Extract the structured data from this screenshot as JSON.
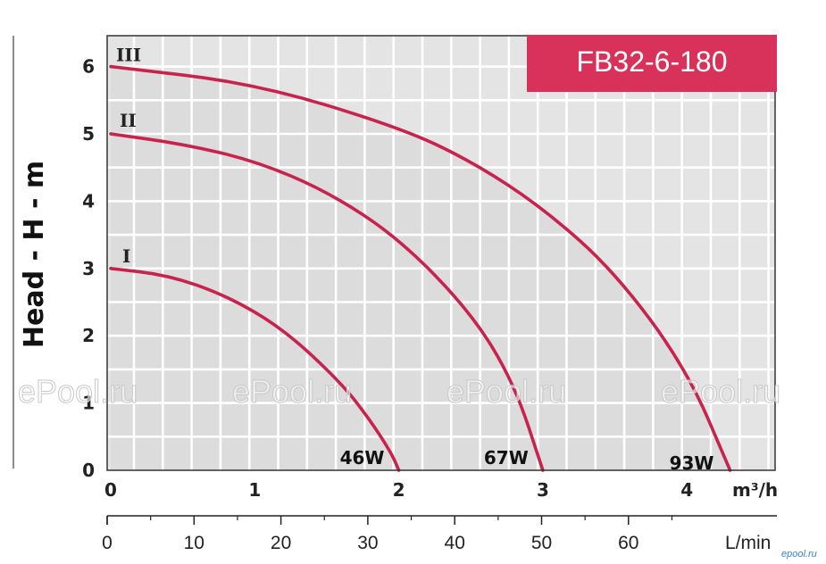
{
  "chart_data": {
    "type": "line",
    "title": "FB32-6-180",
    "ylabel": "Head - H - m",
    "xlabel": "m³/h",
    "secondary_xlabel": "L/min",
    "xlim": [
      0,
      4.5
    ],
    "ylim": [
      0,
      6.5
    ],
    "x_ticks": [
      0,
      1,
      2,
      3,
      4
    ],
    "y_ticks": [
      0,
      1,
      2,
      3,
      4,
      5,
      6
    ],
    "x_tick_labels": [
      "0",
      "1",
      "2",
      "3",
      "4"
    ],
    "y_tick_labels": [
      "0",
      "1",
      "2",
      "3",
      "4",
      "5",
      "6"
    ],
    "secondary_x_ticks": [
      0,
      10,
      20,
      30,
      40,
      50,
      60
    ],
    "secondary_x_tick_labels": [
      "0",
      "10",
      "20",
      "30",
      "40",
      "50",
      "60"
    ],
    "grid": true,
    "series": [
      {
        "name": "I",
        "power_label": "46W",
        "x": [
          0,
          0.4,
          0.8,
          1.2,
          1.6,
          1.8,
          1.95,
          2.0
        ],
        "y": [
          3.0,
          2.9,
          2.6,
          2.1,
          1.3,
          0.75,
          0.25,
          0
        ],
        "color": "#c8234d"
      },
      {
        "name": "II",
        "power_label": "67W",
        "x": [
          0,
          0.5,
          1.0,
          1.5,
          2.0,
          2.5,
          2.8,
          3.0
        ],
        "y": [
          5.0,
          4.85,
          4.6,
          4.15,
          3.45,
          2.35,
          1.3,
          0
        ],
        "color": "#c8234d"
      },
      {
        "name": "III",
        "power_label": "93W",
        "x": [
          0,
          1.0,
          2.0,
          2.5,
          3.0,
          3.5,
          4.0,
          4.3
        ],
        "y": [
          6.0,
          5.75,
          5.1,
          4.6,
          3.9,
          2.95,
          1.5,
          0
        ],
        "color": "#c8234d"
      }
    ]
  },
  "watermark": "ePool.ru",
  "corner_logo": "epool.ru",
  "colors": {
    "accent": "#d9325a",
    "curve": "#c8234d",
    "plot_bg": "#e4e4e4",
    "grid": "#ffffff",
    "fill": "#dcdcdc"
  }
}
